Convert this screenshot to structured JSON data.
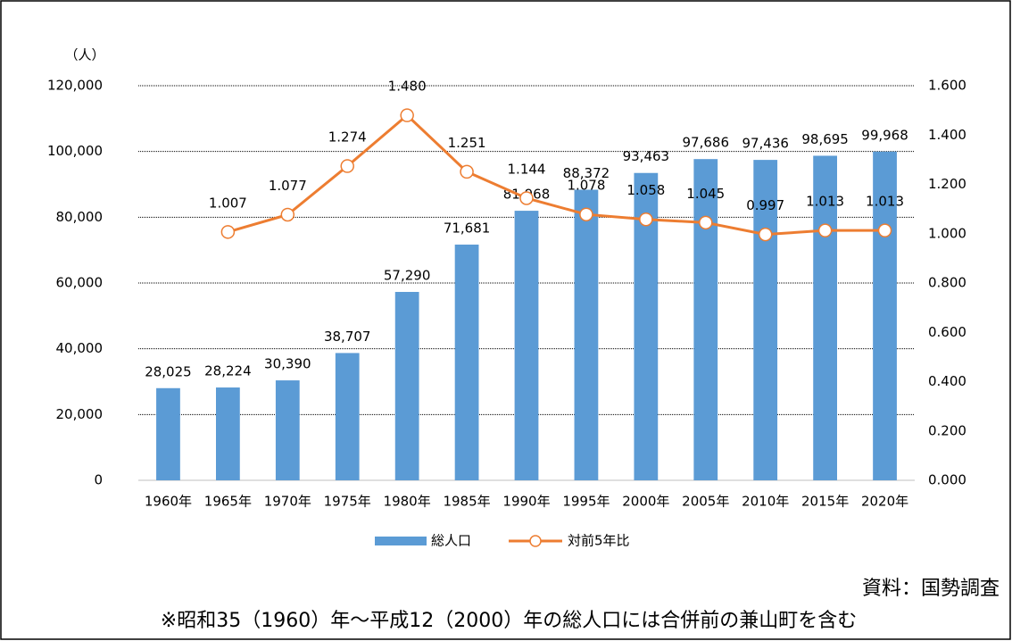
{
  "chart_data": {
    "type": "bar",
    "y_label": "（人）",
    "categories": [
      "1960年",
      "1965年",
      "1970年",
      "1975年",
      "1980年",
      "1985年",
      "1990年",
      "1995年",
      "2000年",
      "2005年",
      "2010年",
      "2015年",
      "2020年"
    ],
    "series": [
      {
        "name": "総人口",
        "type": "bar",
        "color": "#5b9bd5",
        "values": [
          28025,
          28224,
          30390,
          38707,
          57290,
          71681,
          81968,
          88372,
          93463,
          97686,
          97436,
          98695,
          99968
        ],
        "value_labels": [
          "28,025",
          "28,224",
          "30,390",
          "38,707",
          "57,290",
          "71,681",
          "81,968",
          "88,372",
          "93,463",
          "97,686",
          "97,436",
          "98,695",
          "99,968"
        ]
      },
      {
        "name": "対前5年比",
        "type": "line",
        "axis": "y2",
        "color": "#ed7d31",
        "values": [
          null,
          1.007,
          1.077,
          1.274,
          1.48,
          1.251,
          1.144,
          1.078,
          1.058,
          1.045,
          0.997,
          1.013,
          1.013
        ],
        "value_labels": [
          null,
          "1.007",
          "1.077",
          "1.274",
          "1.480",
          "1.251",
          "1.144",
          "1.078",
          "1.058",
          "1.045",
          "0.997",
          "1.013",
          "1.013"
        ]
      }
    ],
    "ylim": [
      0,
      120000
    ],
    "yticks": [
      0,
      {
        "value": 20000,
        "label": "20,000"
      },
      {
        "value": 40000,
        "label": "40,000"
      },
      {
        "value": 60000,
        "label": "60,000"
      },
      {
        "value": 80000,
        "label": "80,000"
      },
      {
        "value": 100000,
        "label": "100,000"
      },
      {
        "value": 120000,
        "label": "120,000"
      }
    ],
    "y2lim": [
      0,
      1.6
    ],
    "y2ticks": [
      {
        "value": 0,
        "label": "0.000"
      },
      {
        "value": 0.2,
        "label": "0.200"
      },
      {
        "value": 0.4,
        "label": "0.400"
      },
      {
        "value": 0.6,
        "label": "0.600"
      },
      {
        "value": 0.8,
        "label": "0.800"
      },
      {
        "value": 1,
        "label": "1.000"
      },
      {
        "value": 1.2,
        "label": "1.200"
      },
      {
        "value": 1.4,
        "label": "1.400"
      },
      {
        "value": 1.6,
        "label": "1.600"
      }
    ],
    "grid": true,
    "legend": "bottom",
    "annotations": [
      "資料：国勢調査",
      "※昭和35（1960）年～平成12（2000）年の総人口には合併前の兼山町を含む"
    ]
  }
}
